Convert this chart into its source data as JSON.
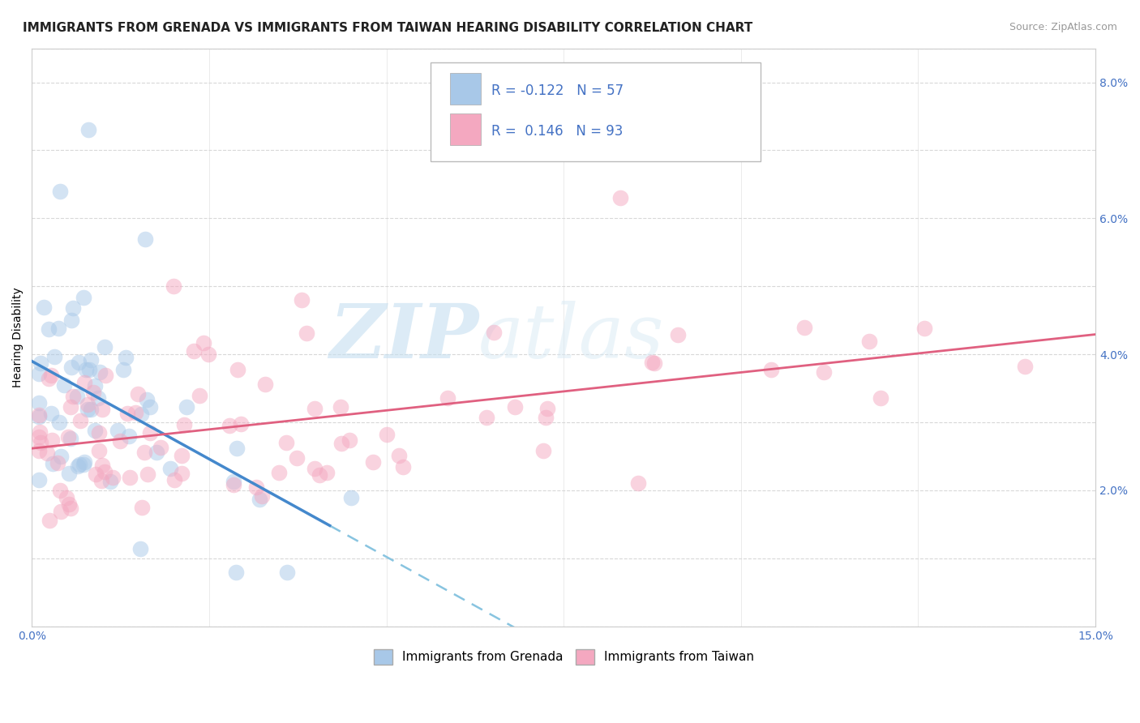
{
  "title": "IMMIGRANTS FROM GRENADA VS IMMIGRANTS FROM TAIWAN HEARING DISABILITY CORRELATION CHART",
  "source": "Source: ZipAtlas.com",
  "ylabel": "Hearing Disability",
  "xlim": [
    0.0,
    0.15
  ],
  "ylim": [
    0.0,
    0.085
  ],
  "grenada_R": -0.122,
  "grenada_N": 57,
  "taiwan_R": 0.146,
  "taiwan_N": 93,
  "grenada_color": "#a8c8e8",
  "taiwan_color": "#f4a8c0",
  "grenada_line_color": "#4488cc",
  "taiwan_line_color": "#e06080",
  "dashed_color": "#88c4e0",
  "watermark_zip": "ZIP",
  "watermark_atlas": "atlas",
  "title_fontsize": 11,
  "axis_label_fontsize": 10,
  "tick_fontsize": 10,
  "legend_fontsize": 12,
  "scatter_size": 200,
  "scatter_alpha": 0.5
}
